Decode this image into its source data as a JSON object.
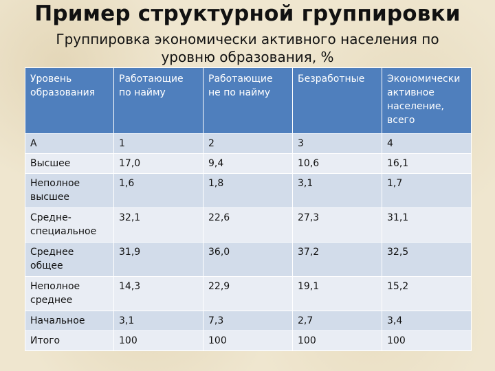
{
  "title": "Пример структурной группировки",
  "subtitle": "Группировка экономически активного населения по уровню образования, %",
  "table": {
    "headers": [
      "Уровень образования",
      "Работающие по найму",
      "Работающие не по найму",
      "Безработные",
      "Экономически активное население, всего"
    ],
    "rows": [
      [
        "А",
        "1",
        "2",
        "3",
        "4"
      ],
      [
        "Высшее",
        "17,0",
        "9,4",
        "10,6",
        "16,1"
      ],
      [
        "Неполное высшее",
        "1,6",
        "1,8",
        "3,1",
        "1,7"
      ],
      [
        "Средне-специальное",
        "32,1",
        "22,6",
        "27,3",
        "31,1"
      ],
      [
        "Среднее общее",
        "31,9",
        "36,0",
        "37,2",
        "32,5"
      ],
      [
        "Неполное среднее",
        "14,3",
        "22,9",
        "19,1",
        "15,2"
      ],
      [
        "Начальное",
        "3,1",
        "7,3",
        "2,7",
        "3,4"
      ],
      [
        "Итого",
        "100",
        "100",
        "100",
        "100"
      ]
    ]
  },
  "colors": {
    "header_bg": "#4f7fbd",
    "row_bg": "#d2dcea",
    "row_alt_bg": "#e9edf4",
    "page_bg": "#efe6cf"
  }
}
